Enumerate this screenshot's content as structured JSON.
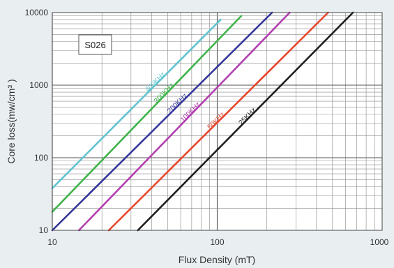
{
  "chart_data": {
    "type": "line",
    "title": "",
    "xlabel": "Flux Density (mT)",
    "ylabel": "Core loss(mw/cm³ )",
    "xscale": "log",
    "yscale": "log",
    "xlim": [
      10,
      1000
    ],
    "ylim": [
      10,
      10000
    ],
    "x_ticks": [
      "10",
      "100",
      "1000"
    ],
    "y_ticks": [
      "10",
      "100",
      "1000",
      "10000"
    ],
    "grid": true,
    "annotation": "S026",
    "series": [
      {
        "name": "400KHz",
        "color": "#5fc4cf",
        "x": [
          10,
          105
        ],
        "y": [
          38,
          8000
        ]
      },
      {
        "name": "300KHz",
        "color": "#3fb34a",
        "x": [
          10,
          140
        ],
        "y": [
          18,
          9000
        ]
      },
      {
        "name": "200KHz",
        "color": "#34389a",
        "x": [
          10,
          215
        ],
        "y": [
          10,
          10000
        ]
      },
      {
        "name": "100KHz",
        "color": "#b23fb0",
        "x": [
          14.5,
          275
        ],
        "y": [
          10,
          10000
        ]
      },
      {
        "name": "50KHz",
        "color": "#e8462e",
        "x": [
          22,
          470
        ],
        "y": [
          10,
          10000
        ]
      },
      {
        "name": "25KHz",
        "color": "#1e1e1e",
        "x": [
          33,
          665
        ],
        "y": [
          10,
          10000
        ]
      }
    ]
  }
}
